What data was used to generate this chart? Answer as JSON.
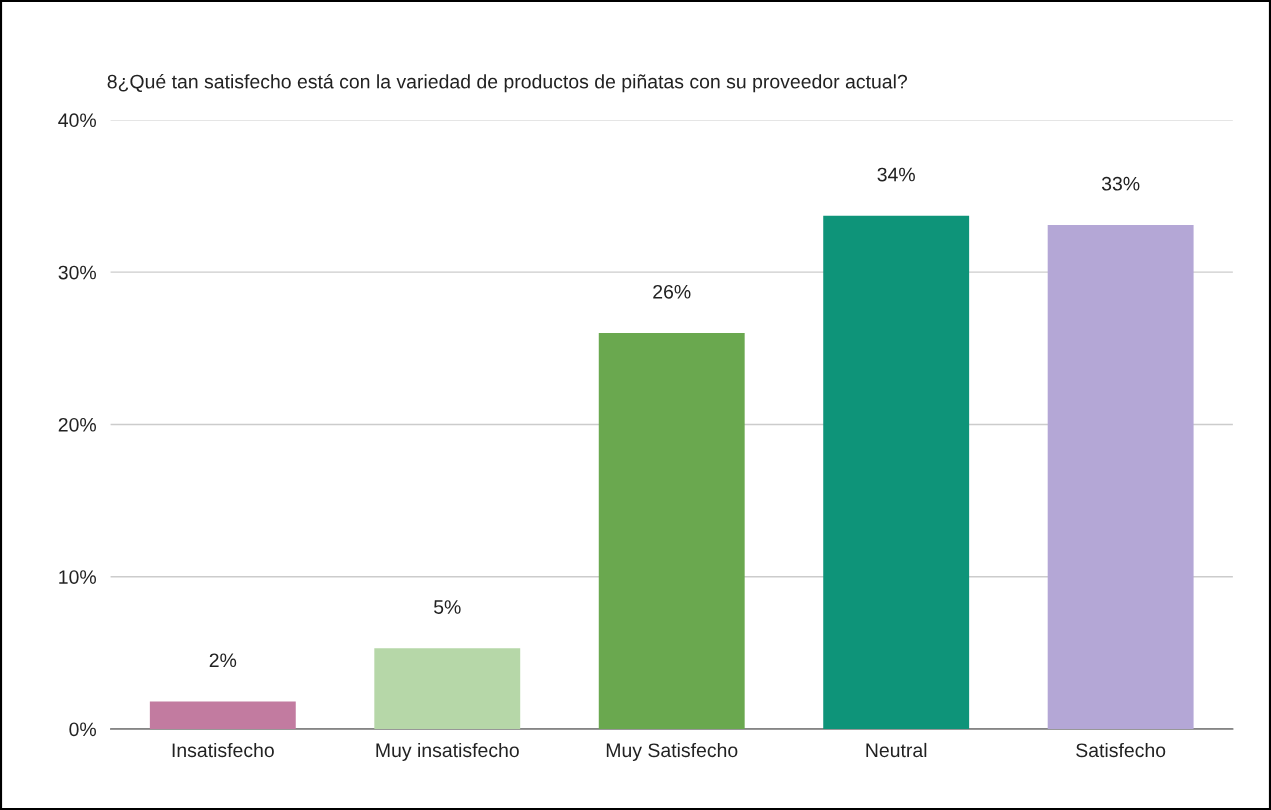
{
  "chart_data": {
    "type": "bar",
    "title": "8¿Qué tan satisfecho está con la variedad de productos de piñatas con su proveedor actual?",
    "categories": [
      "Insatisfecho",
      "Muy insatisfecho",
      "Muy Satisfecho",
      "Neutral",
      "Satisfecho"
    ],
    "values": [
      1.8,
      5.3,
      26,
      33.7,
      33.1
    ],
    "value_labels": [
      "2%",
      "5%",
      "26%",
      "34%",
      "33%"
    ],
    "colors": [
      "#c27ba0",
      "#b6d7a8",
      "#6aa84f",
      "#0e9479",
      "#b4a7d6"
    ],
    "ylim": [
      0,
      40
    ],
    "yticks": [
      {
        "value": 0,
        "label": "0%"
      },
      {
        "value": 10,
        "label": "10%"
      },
      {
        "value": 20,
        "label": "20%"
      },
      {
        "value": 30,
        "label": "30%"
      },
      {
        "value": 40,
        "label": "40%"
      }
    ],
    "grid": "y"
  }
}
